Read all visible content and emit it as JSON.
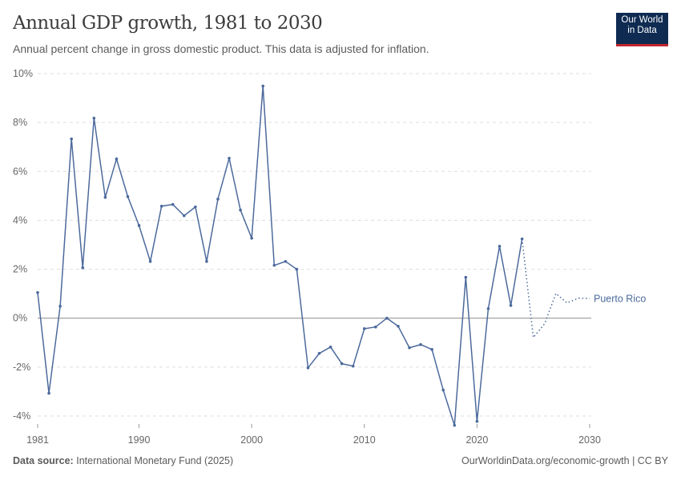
{
  "header": {
    "title": "Annual GDP growth, 1981 to 2030",
    "subtitle": "Annual percent change in gross domestic product. This data is adjusted for inflation.",
    "logo_line1": "Our World",
    "logo_line2": "in Data"
  },
  "footer": {
    "source_label": "Data source:",
    "source": "International Monetary Fund (2025)",
    "url": "OurWorldinData.org/economic-growth | CC BY"
  },
  "chart_data": {
    "type": "line",
    "title": "Annual GDP growth, 1981 to 2030",
    "xlim": [
      1981,
      2030
    ],
    "ylim": [
      -4,
      10
    ],
    "yticks": [
      -4,
      -2,
      0,
      2,
      4,
      6,
      8,
      10
    ],
    "ytick_labels": [
      "-4%",
      "-2%",
      "0%",
      "2%",
      "4%",
      "6%",
      "8%",
      "10%"
    ],
    "xticks": [
      1981,
      1990,
      2000,
      2010,
      2020,
      2030
    ],
    "xtick_labels": [
      "1981",
      "1990",
      "2000",
      "2010",
      "2020",
      "2030"
    ],
    "grid": true,
    "color": "#4c6a9c",
    "series": [
      {
        "name": "Puerto Rico",
        "x": [
          1981,
          1982,
          1983,
          1984,
          1985,
          1986,
          1987,
          1988,
          1989,
          1990,
          1991,
          1992,
          1993,
          1994,
          1995,
          1996,
          1997,
          1998,
          1999,
          2000,
          2001,
          2002,
          2003,
          2004,
          2005,
          2006,
          2007,
          2008,
          2009,
          2010,
          2011,
          2012,
          2013,
          2014,
          2015,
          2016,
          2017,
          2018,
          2019,
          2020,
          2021,
          2022,
          2023,
          2024
        ],
        "y": [
          1.05,
          -3.07,
          0.49,
          7.33,
          2.06,
          8.18,
          4.94,
          6.51,
          4.97,
          3.79,
          2.32,
          4.58,
          4.65,
          4.19,
          4.55,
          2.32,
          4.87,
          6.54,
          4.42,
          3.27,
          9.49,
          2.16,
          2.32,
          2.0,
          -2.03,
          -1.44,
          -1.18,
          -1.86,
          -1.96,
          -0.43,
          -0.36,
          0.0,
          -0.33,
          -1.21,
          -1.08,
          -1.28,
          -2.94,
          -4.38,
          1.67,
          -4.22,
          0.39,
          2.94,
          0.52,
          3.24
        ],
        "projection_x": [
          2024,
          2025,
          2026,
          2027,
          2028,
          2029,
          2030
        ],
        "projection_y": [
          3.24,
          -0.79,
          -0.23,
          1.01,
          0.62,
          0.82,
          0.8
        ]
      }
    ]
  }
}
